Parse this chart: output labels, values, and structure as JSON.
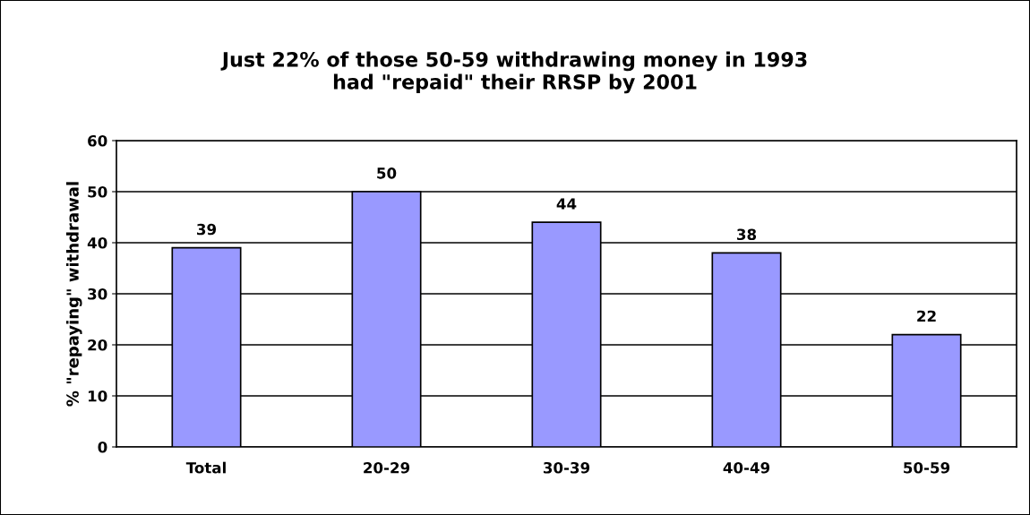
{
  "chart_data": {
    "type": "bar",
    "title": "Just 22% of those 50-59 withdrawing money in 1993\nhad \"repaid\" their RRSP by 2001",
    "ylabel": "% \"repaying\" withdrawal",
    "categories": [
      "Total",
      "20-29",
      "30-39",
      "40-49",
      "50-59"
    ],
    "values": [
      39,
      50,
      44,
      38,
      22
    ],
    "color": "#9999ff",
    "ylim": [
      0,
      60
    ],
    "yticks": [
      0,
      10,
      20,
      30,
      40,
      50,
      60
    ],
    "grid": "y",
    "data_labels": true
  }
}
